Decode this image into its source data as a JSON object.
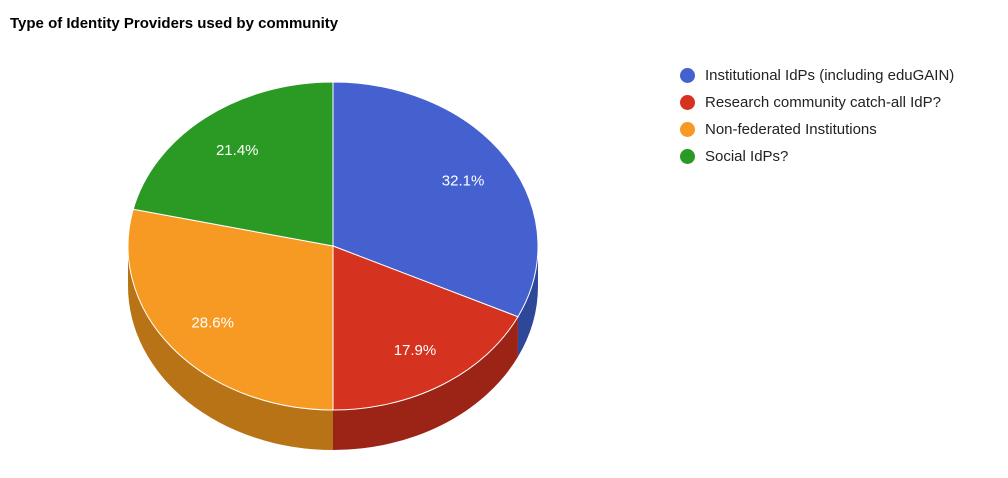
{
  "chart_data": {
    "type": "pie",
    "title": "Type of Identity Providers used by community",
    "categories": [
      "Institutional IdPs (including eduGAIN)",
      "Research community catch-all IdP?",
      "Non-federated Institutions",
      "Social IdPs?"
    ],
    "values": [
      32.1,
      17.9,
      28.6,
      21.4
    ],
    "labels": [
      "32.1%",
      "17.9%",
      "28.6%",
      "21.4%"
    ],
    "colors": [
      "#4461cf",
      "#d5331f",
      "#f79a23",
      "#2a9a24"
    ],
    "side_colors": [
      "#2f4799",
      "#9c2417",
      "#b87317",
      "#1f721a"
    ],
    "legend_position": "right",
    "is3D": true
  }
}
